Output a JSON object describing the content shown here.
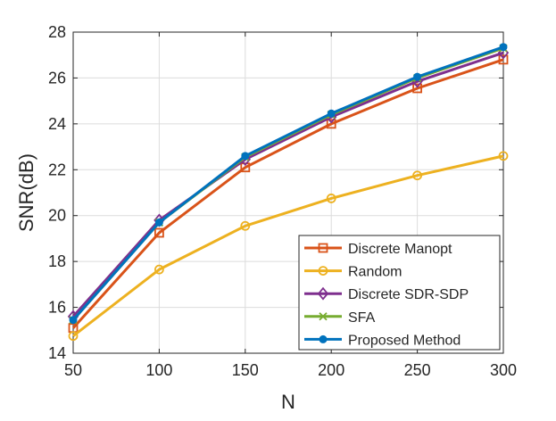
{
  "chart_data": {
    "type": "line",
    "title": "",
    "xlabel": "N",
    "ylabel": "SNR(dB)",
    "x": [
      50,
      100,
      150,
      200,
      250,
      300
    ],
    "xlim": [
      50,
      300
    ],
    "ylim": [
      14,
      28
    ],
    "xticks": [
      50,
      100,
      150,
      200,
      250,
      300
    ],
    "yticks": [
      14,
      16,
      18,
      20,
      22,
      24,
      26,
      28
    ],
    "grid": true,
    "legend_position": "bottom-right",
    "series": [
      {
        "name": "Discrete Manopt",
        "color": "#D95319",
        "marker": "square",
        "values": [
          15.1,
          19.25,
          22.1,
          24.0,
          25.55,
          26.8
        ]
      },
      {
        "name": "Random",
        "color": "#EDB120",
        "marker": "circle",
        "values": [
          14.75,
          17.65,
          19.55,
          20.75,
          21.75,
          22.6
        ]
      },
      {
        "name": "Discrete SDR-SDP",
        "color": "#7E2F8E",
        "marker": "diamond",
        "values": [
          15.6,
          19.8,
          22.45,
          24.3,
          25.85,
          27.1
        ]
      },
      {
        "name": "SFA",
        "color": "#77AC30",
        "marker": "x",
        "values": [
          15.45,
          19.7,
          22.55,
          24.4,
          26.0,
          27.3
        ]
      },
      {
        "name": "Proposed Method",
        "color": "#0072BD",
        "marker": "dot",
        "values": [
          15.45,
          19.7,
          22.6,
          24.45,
          26.05,
          27.35
        ]
      }
    ]
  }
}
